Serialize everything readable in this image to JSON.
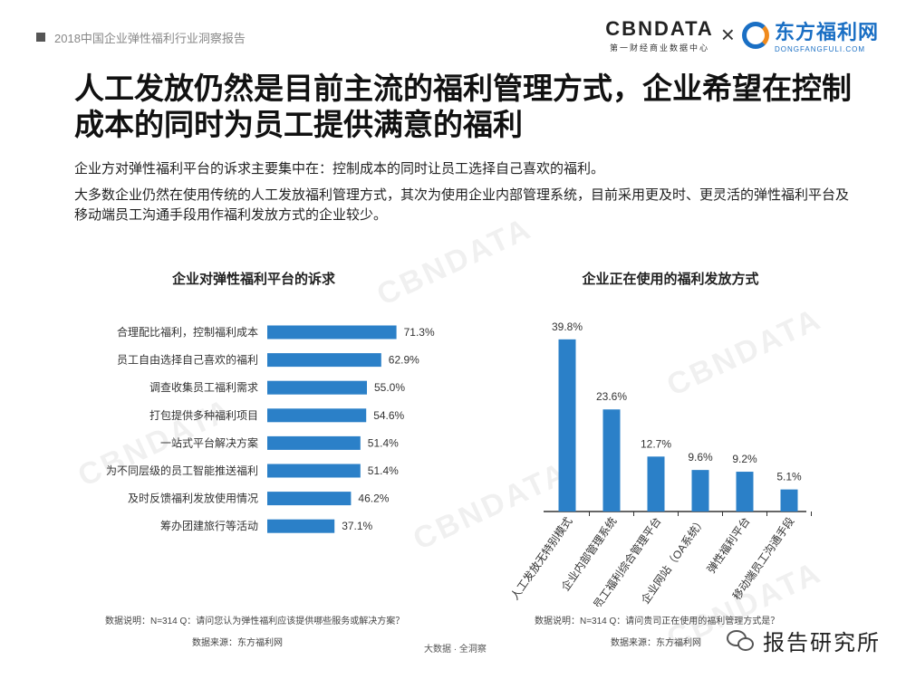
{
  "header": {
    "report_title": "2018中国企业弹性福利行业洞察报告",
    "logo_cbn_main": "CBNDATA",
    "logo_cbn_sub": "第一财经商业数据中心",
    "logo_separator": "×",
    "logo_dfl_cn": "东方福利网",
    "logo_dfl_en": "DONGFANGFULI.COM"
  },
  "headline": "人工发放仍然是目前主流的福利管理方式，企业希望在控制成本的同时为员工提供满意的福利",
  "paragraphs": {
    "p1": "企业方对弹性福利平台的诉求主要集中在：控制成本的同时让员工选择自己喜欢的福利。",
    "p2": "大多数企业仍然在使用传统的人工发放福利管理方式，其次为使用企业内部管理系统，目前采用更及时、更灵活的弹性福利平台及移动端员工沟通手段用作福利发放方式的企业较少。"
  },
  "colors": {
    "bar": "#2b80c8",
    "axis": "#333333"
  },
  "chart_data": [
    {
      "type": "bar",
      "orientation": "horizontal",
      "title": "企业对弹性福利平台的诉求",
      "categories": [
        "合理配比福利，控制福利成本",
        "员工自由选择自己喜欢的福利",
        "调查收集员工福利需求",
        "打包提供多种福利项目",
        "一站式平台解决方案",
        "为不同层级的员工智能推送福利",
        "及时反馈福利发放使用情况",
        "筹办团建旅行等活动"
      ],
      "values": [
        71.3,
        62.9,
        55.0,
        54.6,
        51.4,
        51.4,
        46.2,
        37.1
      ],
      "labels": [
        "71.3%",
        "62.9%",
        "55.0%",
        "54.6%",
        "51.4%",
        "51.4%",
        "46.2%",
        "37.1%"
      ],
      "xlim": [
        0,
        100
      ],
      "note": "数据说明：N=314 Q：请问您认为弹性福利应该提供哪些服务或解决方案？",
      "source": "数据来源：东方福利网"
    },
    {
      "type": "bar",
      "orientation": "vertical",
      "title": "企业正在使用的福利发放方式",
      "categories": [
        "人工发放无特别模式",
        "企业内部管理系统",
        "员工福利综合管理平台",
        "企业网站（OA系统）",
        "弹性福利平台",
        "移动端员工沟通手段"
      ],
      "values": [
        39.8,
        23.6,
        12.7,
        9.6,
        9.2,
        5.1
      ],
      "labels": [
        "39.8%",
        "23.6%",
        "12.7%",
        "9.6%",
        "9.2%",
        "5.1%"
      ],
      "ylim": [
        0,
        45
      ],
      "note": "数据说明：N=314 Q：请问贵司正在使用的福利管理方式是？",
      "source": "数据来源：东方福利网"
    }
  ],
  "footer": {
    "center": "大数据 · 全洞察",
    "wechat_label": "报告研究所"
  }
}
